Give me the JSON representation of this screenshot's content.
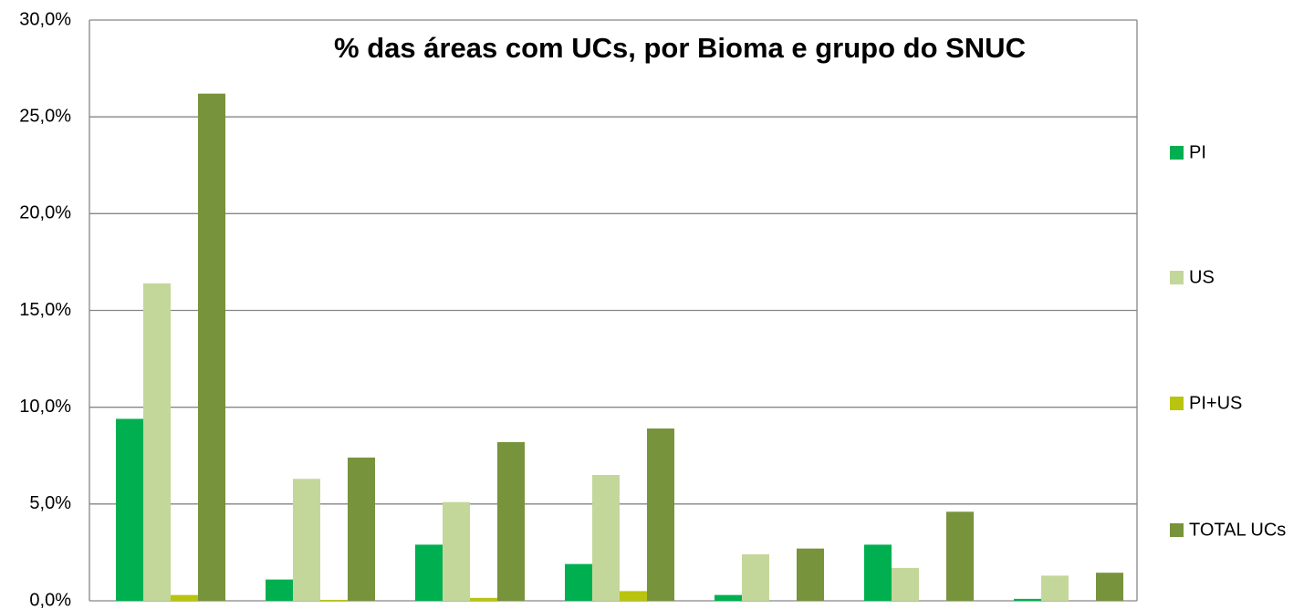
{
  "chart_data": {
    "type": "bar",
    "title": "% das áreas com UCs, por Bioma e grupo do SNUC",
    "categories": [
      null,
      null,
      null,
      null,
      null,
      null,
      null
    ],
    "series": [
      {
        "name": "PI",
        "color": "#00b050",
        "values": [
          9.4,
          1.1,
          2.9,
          1.9,
          0.3,
          2.9,
          0.1
        ]
      },
      {
        "name": "US",
        "color": "#c4d79b",
        "values": [
          16.4,
          6.3,
          5.1,
          6.5,
          2.4,
          1.7,
          1.3
        ]
      },
      {
        "name": "PI+US",
        "color": "#b9c40e",
        "values": [
          0.3,
          0.05,
          0.15,
          0.5,
          0,
          0,
          0
        ]
      },
      {
        "name": "TOTAL UCs",
        "color": "#77933c",
        "values": [
          26.2,
          7.4,
          8.2,
          8.9,
          2.7,
          4.6,
          1.45
        ]
      }
    ],
    "ylim": [
      0,
      30
    ],
    "yticks": [
      {
        "value": 0,
        "label": "0,0%"
      },
      {
        "value": 5,
        "label": "5,0%"
      },
      {
        "value": 10,
        "label": "10,0%"
      },
      {
        "value": 15,
        "label": "15,0%"
      },
      {
        "value": 20,
        "label": "20,0%"
      },
      {
        "value": 25,
        "label": "25,0%"
      },
      {
        "value": 30,
        "label": "30,0%"
      }
    ],
    "grid": true,
    "legend": "right"
  }
}
